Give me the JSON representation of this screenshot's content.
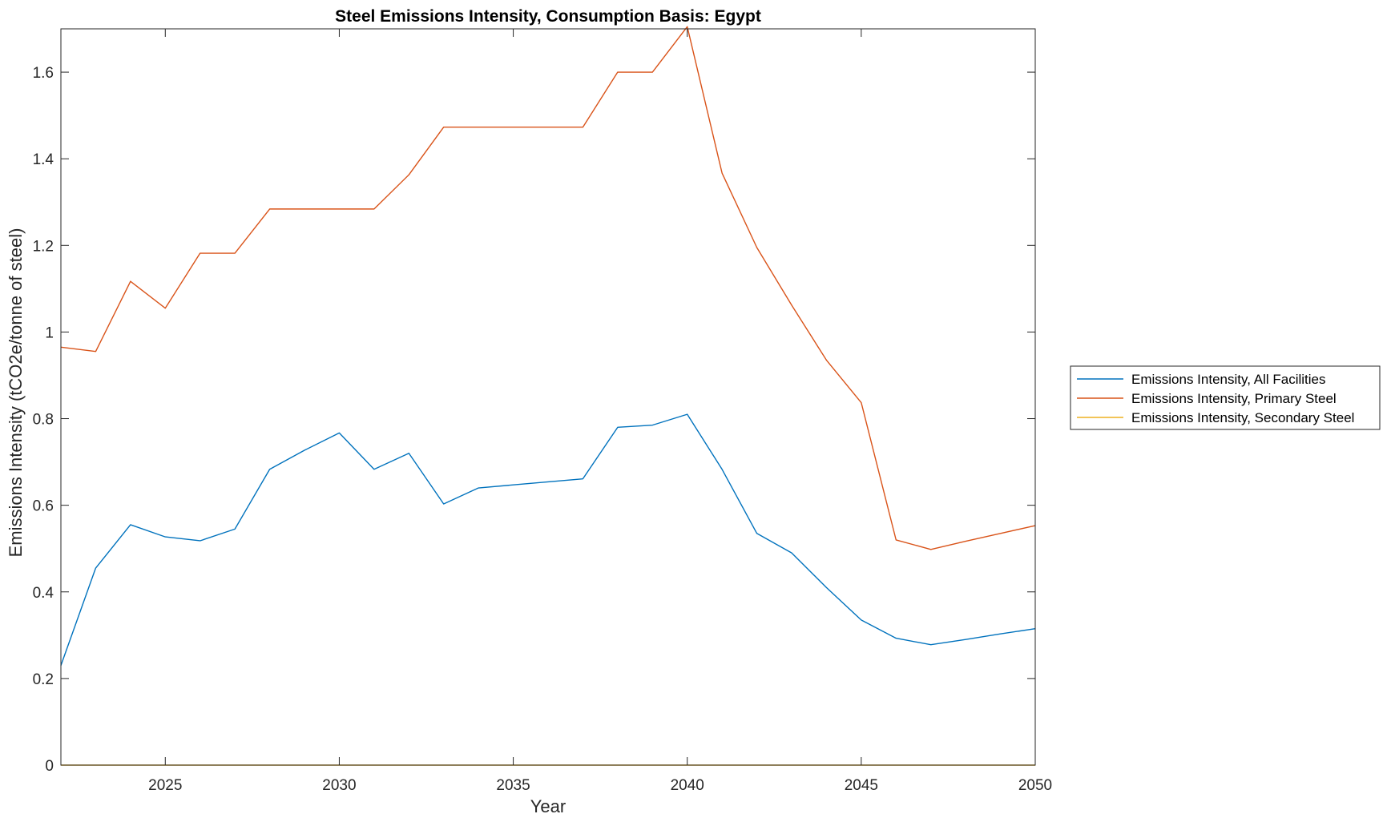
{
  "chart_data": {
    "type": "line",
    "title": "Steel Emissions Intensity, Consumption Basis: Egypt",
    "xlabel": "Year",
    "ylabel": "Emissions Intensity (tCO2e/tonne of steel)",
    "xlim": [
      2022,
      2050
    ],
    "ylim": [
      0,
      1.7
    ],
    "xticks": [
      2025,
      2030,
      2035,
      2040,
      2045,
      2050
    ],
    "yticks": [
      0,
      0.2,
      0.4,
      0.6,
      0.8,
      1,
      1.2,
      1.4,
      1.6
    ],
    "ytick_labels": [
      "0",
      "0.2",
      "0.4",
      "0.6",
      "0.8",
      "1",
      "1.2",
      "1.4",
      "1.6"
    ],
    "grid": false,
    "legend_position": "outside-right",
    "x": [
      2022,
      2023,
      2024,
      2025,
      2026,
      2027,
      2028,
      2029,
      2030,
      2031,
      2032,
      2033,
      2034,
      2035,
      2036,
      2037,
      2038,
      2039,
      2040,
      2041,
      2042,
      2043,
      2044,
      2045,
      2046,
      2047,
      2048,
      2049,
      2050
    ],
    "series": [
      {
        "name": "Emissions Intensity, All Facilities",
        "color": "#0072BD",
        "values": [
          0.23,
          0.455,
          0.555,
          0.527,
          0.518,
          0.545,
          0.683,
          0.727,
          0.767,
          0.683,
          0.72,
          0.603,
          0.64,
          0.647,
          0.654,
          0.661,
          0.78,
          0.785,
          0.81,
          0.683,
          0.535,
          0.49,
          0.41,
          0.335,
          0.293,
          0.278,
          0.29,
          0.303,
          0.315
        ]
      },
      {
        "name": "Emissions Intensity, Primary Steel",
        "color": "#D95319",
        "values": [
          0.965,
          0.955,
          1.117,
          1.055,
          1.182,
          1.182,
          1.284,
          1.284,
          1.284,
          1.284,
          1.363,
          1.473,
          1.473,
          1.473,
          1.473,
          1.473,
          1.6,
          1.6,
          1.705,
          1.367,
          1.195,
          1.062,
          0.935,
          0.837,
          0.52,
          0.498,
          0.517,
          0.535,
          0.553
        ]
      },
      {
        "name": "Emissions Intensity, Secondary Steel",
        "color": "#EDB120",
        "values": [
          0,
          0,
          0,
          0,
          0,
          0,
          0,
          0,
          0,
          0,
          0,
          0,
          0,
          0,
          0,
          0,
          0,
          0,
          0,
          0,
          0,
          0,
          0,
          0,
          0,
          0,
          0,
          0,
          0
        ]
      }
    ]
  }
}
